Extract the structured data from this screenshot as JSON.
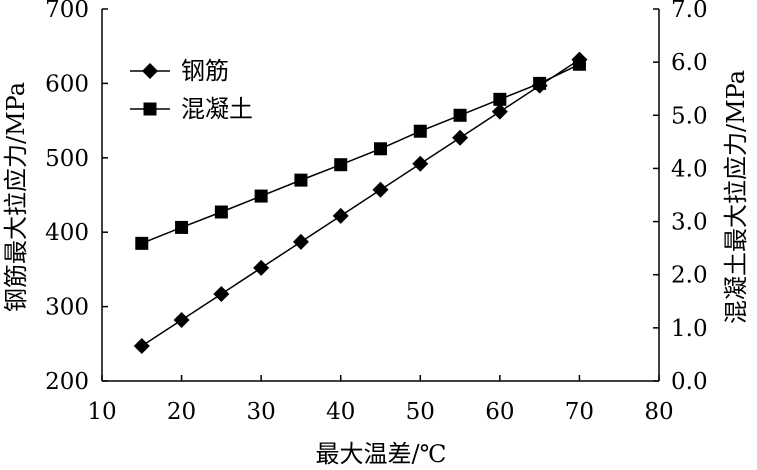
{
  "chart_data": {
    "type": "line",
    "xlabel": "最大温差/℃",
    "ylabel_left": "钢筋最大拉应力/MPa",
    "ylabel_right": "混凝土最大拉应力/MPa",
    "xlim": [
      10,
      80
    ],
    "ylim_left": [
      200,
      700
    ],
    "ylim_right": [
      0.0,
      7.0
    ],
    "xticks": [
      "10",
      "20",
      "30",
      "40",
      "50",
      "60",
      "70",
      "80"
    ],
    "yticks_left": [
      "200",
      "300",
      "400",
      "500",
      "600",
      "700"
    ],
    "yticks_right": [
      "0.0",
      "1.0",
      "2.0",
      "3.0",
      "4.0",
      "5.0",
      "6.0",
      "7.0"
    ],
    "grid": false,
    "legend_position": "top-left",
    "series": [
      {
        "name": "钢筋",
        "axis": "left",
        "marker": "diamond",
        "x": [
          15,
          20,
          25,
          30,
          35,
          40,
          45,
          50,
          55,
          60,
          65,
          70
        ],
        "y": [
          247,
          282,
          317,
          352,
          387,
          422,
          457,
          492,
          527,
          562,
          597,
          632
        ]
      },
      {
        "name": "混凝土",
        "axis": "right",
        "marker": "square",
        "x": [
          15,
          20,
          25,
          30,
          35,
          40,
          45,
          50,
          55,
          60,
          65,
          70
        ],
        "y": [
          2.59,
          2.89,
          3.18,
          3.48,
          3.78,
          4.07,
          4.37,
          4.7,
          5.0,
          5.3,
          5.6,
          5.96
        ]
      }
    ]
  }
}
